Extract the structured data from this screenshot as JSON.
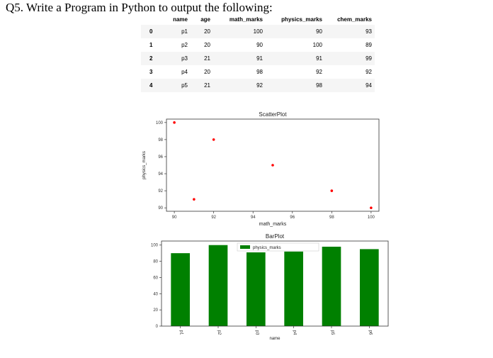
{
  "question": "Q5. Write a Program in Python to output the following:",
  "table": {
    "columns": [
      "",
      "name",
      "age",
      "math_marks",
      "physics_marks",
      "chem_marks"
    ],
    "rows": [
      {
        "index": "0",
        "name": "p1",
        "age": "20",
        "math_marks": "100",
        "physics_marks": "90",
        "chem_marks": "93"
      },
      {
        "index": "1",
        "name": "p2",
        "age": "20",
        "math_marks": "90",
        "physics_marks": "100",
        "chem_marks": "89"
      },
      {
        "index": "2",
        "name": "p3",
        "age": "21",
        "math_marks": "91",
        "physics_marks": "91",
        "chem_marks": "99"
      },
      {
        "index": "3",
        "name": "p4",
        "age": "20",
        "math_marks": "98",
        "physics_marks": "92",
        "chem_marks": "92"
      },
      {
        "index": "4",
        "name": "p5",
        "age": "21",
        "math_marks": "92",
        "physics_marks": "98",
        "chem_marks": "94"
      }
    ]
  },
  "chart_data": [
    {
      "type": "scatter",
      "title": "ScatterPlot",
      "xlabel": "math_marks",
      "ylabel": "physics_marks",
      "x": [
        90,
        91,
        92,
        95,
        98,
        100
      ],
      "y": [
        100,
        91,
        98,
        95,
        92,
        90
      ],
      "xlim": [
        89.6,
        100.4
      ],
      "ylim": [
        89.6,
        100.4
      ],
      "xticks": [
        90,
        92,
        94,
        96,
        98,
        100
      ],
      "yticks": [
        90,
        92,
        94,
        96,
        98,
        100
      ],
      "point_color": "#ff0000",
      "grid": false
    },
    {
      "type": "bar",
      "title": "BarPlot",
      "xlabel": "name",
      "categories": [
        "p1",
        "p2",
        "p3",
        "p4",
        "p5",
        "p6"
      ],
      "series": [
        {
          "name": "physics_marks",
          "values": [
            90,
            100,
            91,
            92,
            98,
            95
          ],
          "color": "#008000"
        }
      ],
      "ylim": [
        0,
        105
      ],
      "yticks": [
        0,
        20,
        40,
        60,
        80,
        100
      ],
      "legend": "top-center",
      "grid": false
    }
  ]
}
